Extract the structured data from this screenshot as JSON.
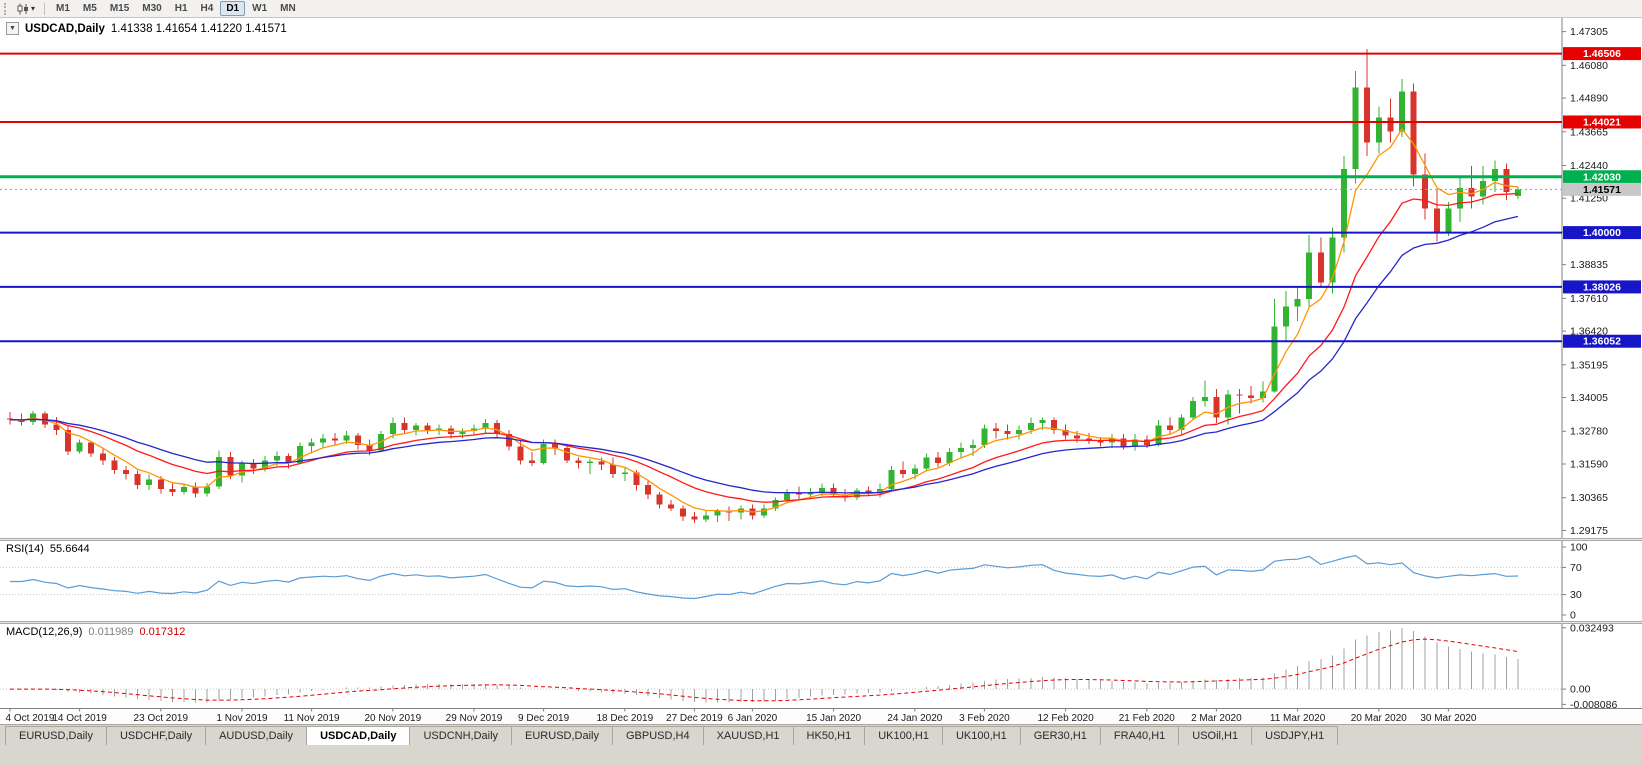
{
  "toolbar": {
    "timeframes": [
      "M1",
      "M5",
      "M15",
      "M30",
      "H1",
      "H4",
      "D1",
      "W1",
      "MN"
    ],
    "active_timeframe": "D1"
  },
  "chart": {
    "collapse_arrow": "▼",
    "title_symbol": "USDCAD,Daily",
    "title_ohlc": "1.41338 1.41654 1.41220 1.41571"
  },
  "rsi": {
    "label": "RSI(14)",
    "value": "55.6644"
  },
  "macd": {
    "label": "MACD(12,26,9)",
    "value_main": "0.011989",
    "value_signal": "0.017312"
  },
  "tabs": {
    "items": [
      "EURUSD,Daily",
      "USDCHF,Daily",
      "AUDUSD,Daily",
      "USDCAD,Daily",
      "USDCNH,Daily",
      "EURUSD,Daily",
      "GBPUSD,H4",
      "XAUUSD,H1",
      "HK50,H1",
      "UK100,H1",
      "UK100,H1",
      "GER30,H1",
      "FRA40,H1",
      "USOil,H1",
      "USDJPY,H1"
    ],
    "active_index": 3
  },
  "chart_data": {
    "type": "candlestick",
    "symbol": "USDCAD",
    "timeframe": "Daily",
    "indicators": [
      "RSI(14)",
      "MACD(12,26,9)"
    ],
    "colors": {
      "bull": "#32b332",
      "bear": "#d7342c",
      "background": "#ffffff",
      "axis_text": "#1a1a1a"
    },
    "price_scale": {
      "max": 1.478,
      "min": 1.289
    },
    "y_axis_ticks": [
      "1.47305",
      "1.46080",
      "1.44890",
      "1.43665",
      "1.42440",
      "1.41250",
      "1.40025",
      "1.38835",
      "1.37610",
      "1.36420",
      "1.35195",
      "1.34005",
      "1.32780",
      "1.31590",
      "1.30365",
      "1.29175"
    ],
    "x_axis_labels": [
      {
        "i": 0,
        "t": "4 Oct 2019"
      },
      {
        "i": 6,
        "t": "14 Oct 2019"
      },
      {
        "i": 13,
        "t": "23 Oct 2019"
      },
      {
        "i": 20,
        "t": "1 Nov 2019"
      },
      {
        "i": 26,
        "t": "11 Nov 2019"
      },
      {
        "i": 33,
        "t": "20 Nov 2019"
      },
      {
        "i": 40,
        "t": "29 Nov 2019"
      },
      {
        "i": 46,
        "t": "9 Dec 2019"
      },
      {
        "i": 53,
        "t": "18 Dec 2019"
      },
      {
        "i": 59,
        "t": "27 Dec 2019"
      },
      {
        "i": 64,
        "t": "6 Jan 2020"
      },
      {
        "i": 71,
        "t": "15 Jan 2020"
      },
      {
        "i": 78,
        "t": "24 Jan 2020"
      },
      {
        "i": 84,
        "t": "3 Feb 2020"
      },
      {
        "i": 91,
        "t": "12 Feb 2020"
      },
      {
        "i": 98,
        "t": "21 Feb 2020"
      },
      {
        "i": 104,
        "t": "2 Mar 2020"
      },
      {
        "i": 111,
        "t": "11 Mar 2020"
      },
      {
        "i": 118,
        "t": "20 Mar 2020"
      },
      {
        "i": 124,
        "t": "30 Mar 2020"
      }
    ],
    "levels": [
      {
        "price": 1.46506,
        "label": "1.46506",
        "color": "#e60000",
        "width": 2
      },
      {
        "price": 1.44021,
        "label": "1.44021",
        "color": "#e60000",
        "width": 2
      },
      {
        "price": 1.4203,
        "label": "1.42030",
        "color": "#00b050",
        "width": 3
      },
      {
        "price": 1.4,
        "label": "1.40000",
        "color": "#1616c8",
        "width": 2
      },
      {
        "price": 1.38026,
        "label": "1.38026",
        "color": "#1616c8",
        "width": 2
      },
      {
        "price": 1.36052,
        "label": "1.36052",
        "color": "#1616c8",
        "width": 2
      }
    ],
    "current_price": {
      "value": 1.41571,
      "label": "1.41571",
      "box_color": "#c8c8c8",
      "text_color": "#000000"
    },
    "moving_averages": [
      {
        "period": 5,
        "method": "ema",
        "color": "#ff9500"
      },
      {
        "period": 13,
        "method": "ema",
        "color": "#ff1a1a"
      },
      {
        "period": 21,
        "method": "ema",
        "color": "#2626cc"
      }
    ],
    "rsi": {
      "period": 14,
      "last_value": 55.6644,
      "color": "#5a9bd4",
      "axis": [
        {
          "v": 100,
          "t": "100"
        },
        {
          "v": 70,
          "t": "70"
        },
        {
          "v": 30,
          "t": "30"
        },
        {
          "v": 0,
          "t": "0"
        }
      ],
      "dotted_levels": [
        70,
        30
      ]
    },
    "macd": {
      "fast": 12,
      "slow": 26,
      "signal_period": 9,
      "last_main": 0.011989,
      "last_signal": 0.017312,
      "hist_color": "#a0a0a0",
      "signal_color": "#e60000",
      "axis": [
        {
          "v": 0.032493,
          "t": "0.032493"
        },
        {
          "v": 0,
          "t": "0.00"
        },
        {
          "v": -0.008086,
          "t": "-0.008086"
        }
      ],
      "scale_max": 0.032493,
      "view_max": 0.0345,
      "view_min": -0.01
    },
    "ohlc": [
      [
        1.3325,
        1.3348,
        1.3302,
        1.332
      ],
      [
        1.332,
        1.3342,
        1.3298,
        1.3312
      ],
      [
        1.3312,
        1.3352,
        1.33,
        1.3342
      ],
      [
        1.3342,
        1.335,
        1.329,
        1.3302
      ],
      [
        1.3302,
        1.333,
        1.3265,
        1.3282
      ],
      [
        1.3282,
        1.33,
        1.3192,
        1.3205
      ],
      [
        1.3205,
        1.3248,
        1.3198,
        1.3238
      ],
      [
        1.3238,
        1.3242,
        1.3185,
        1.3198
      ],
      [
        1.3198,
        1.3215,
        1.3155,
        1.3172
      ],
      [
        1.3172,
        1.3185,
        1.3122,
        1.3138
      ],
      [
        1.3138,
        1.3152,
        1.3102,
        1.3122
      ],
      [
        1.3122,
        1.3135,
        1.3068,
        1.3082
      ],
      [
        1.3082,
        1.312,
        1.3065,
        1.3102
      ],
      [
        1.3102,
        1.3115,
        1.3052,
        1.3068
      ],
      [
        1.3068,
        1.3088,
        1.3042,
        1.3058
      ],
      [
        1.3058,
        1.3085,
        1.3048,
        1.3075
      ],
      [
        1.3075,
        1.3092,
        1.3038,
        1.3052
      ],
      [
        1.3052,
        1.309,
        1.304,
        1.3078
      ],
      [
        1.3078,
        1.3208,
        1.3068,
        1.3185
      ],
      [
        1.3185,
        1.3202,
        1.3105,
        1.3118
      ],
      [
        1.3118,
        1.3172,
        1.3092,
        1.3162
      ],
      [
        1.3162,
        1.3178,
        1.3122,
        1.3142
      ],
      [
        1.3142,
        1.3188,
        1.3132,
        1.3172
      ],
      [
        1.3172,
        1.3205,
        1.3152,
        1.3188
      ],
      [
        1.3188,
        1.3198,
        1.3142,
        1.3162
      ],
      [
        1.3162,
        1.3238,
        1.3158,
        1.3225
      ],
      [
        1.3225,
        1.3252,
        1.3198,
        1.3238
      ],
      [
        1.3238,
        1.3268,
        1.3218,
        1.3252
      ],
      [
        1.3252,
        1.3272,
        1.3228,
        1.3245
      ],
      [
        1.3245,
        1.3278,
        1.3232,
        1.3262
      ],
      [
        1.3262,
        1.3272,
        1.3212,
        1.3228
      ],
      [
        1.3228,
        1.3248,
        1.3192,
        1.3208
      ],
      [
        1.3208,
        1.3278,
        1.3202,
        1.3268
      ],
      [
        1.3268,
        1.3328,
        1.3252,
        1.3308
      ],
      [
        1.3308,
        1.3328,
        1.3268,
        1.3282
      ],
      [
        1.3282,
        1.3308,
        1.3262,
        1.3298
      ],
      [
        1.3298,
        1.3308,
        1.3268,
        1.3282
      ],
      [
        1.3282,
        1.3302,
        1.3265,
        1.3288
      ],
      [
        1.3288,
        1.3298,
        1.3252,
        1.3268
      ],
      [
        1.3268,
        1.3288,
        1.3252,
        1.3278
      ],
      [
        1.3278,
        1.3302,
        1.3265,
        1.3288
      ],
      [
        1.3288,
        1.3322,
        1.3268,
        1.3308
      ],
      [
        1.3308,
        1.3318,
        1.3252,
        1.3268
      ],
      [
        1.3268,
        1.3282,
        1.3208,
        1.3222
      ],
      [
        1.3222,
        1.3242,
        1.3158,
        1.3172
      ],
      [
        1.3172,
        1.3202,
        1.3152,
        1.3162
      ],
      [
        1.3162,
        1.3248,
        1.3158,
        1.3232
      ],
      [
        1.3232,
        1.3248,
        1.3192,
        1.3218
      ],
      [
        1.3218,
        1.3228,
        1.3162,
        1.3172
      ],
      [
        1.3172,
        1.3182,
        1.3142,
        1.3162
      ],
      [
        1.3162,
        1.3178,
        1.3122,
        1.3168
      ],
      [
        1.3168,
        1.3182,
        1.3138,
        1.3158
      ],
      [
        1.3158,
        1.3182,
        1.3108,
        1.3122
      ],
      [
        1.3122,
        1.3148,
        1.3098,
        1.3128
      ],
      [
        1.3128,
        1.3138,
        1.3062,
        1.3082
      ],
      [
        1.3082,
        1.3098,
        1.3032,
        1.3048
      ],
      [
        1.3048,
        1.3058,
        1.2998,
        1.3012
      ],
      [
        1.3012,
        1.3028,
        1.2988,
        1.2998
      ],
      [
        1.2998,
        1.3008,
        1.2952,
        1.2968
      ],
      [
        1.2968,
        1.2985,
        1.2945,
        1.2958
      ],
      [
        1.2958,
        1.2988,
        1.2948,
        1.2972
      ],
      [
        1.2972,
        1.2995,
        1.2948,
        1.2988
      ],
      [
        1.2988,
        1.3005,
        1.2952,
        1.2982
      ],
      [
        1.2982,
        1.3008,
        1.2958,
        1.2998
      ],
      [
        1.2998,
        1.3012,
        1.2958,
        1.2972
      ],
      [
        1.2972,
        1.3012,
        1.2962,
        1.2998
      ],
      [
        1.2998,
        1.3038,
        1.2988,
        1.3028
      ],
      [
        1.3028,
        1.3068,
        1.3018,
        1.3052
      ],
      [
        1.3052,
        1.3078,
        1.3028,
        1.3048
      ],
      [
        1.3048,
        1.3072,
        1.3032,
        1.3058
      ],
      [
        1.3058,
        1.3088,
        1.3042,
        1.3072
      ],
      [
        1.3072,
        1.3088,
        1.3038,
        1.3048
      ],
      [
        1.3048,
        1.3068,
        1.3022,
        1.3038
      ],
      [
        1.3038,
        1.3072,
        1.3028,
        1.3062
      ],
      [
        1.3062,
        1.3078,
        1.3042,
        1.3052
      ],
      [
        1.3052,
        1.3088,
        1.3038,
        1.3068
      ],
      [
        1.3068,
        1.3152,
        1.3058,
        1.3138
      ],
      [
        1.3138,
        1.3168,
        1.3108,
        1.3122
      ],
      [
        1.3122,
        1.3158,
        1.3102,
        1.3142
      ],
      [
        1.3142,
        1.3198,
        1.3132,
        1.3182
      ],
      [
        1.3182,
        1.3202,
        1.3148,
        1.3162
      ],
      [
        1.3162,
        1.3218,
        1.3152,
        1.3202
      ],
      [
        1.3202,
        1.3238,
        1.3182,
        1.3218
      ],
      [
        1.3218,
        1.3248,
        1.3188,
        1.3228
      ],
      [
        1.3228,
        1.3302,
        1.3218,
        1.3288
      ],
      [
        1.3288,
        1.3308,
        1.3252,
        1.3278
      ],
      [
        1.3278,
        1.3302,
        1.3248,
        1.3268
      ],
      [
        1.3268,
        1.3298,
        1.3248,
        1.3282
      ],
      [
        1.3282,
        1.3328,
        1.3268,
        1.3308
      ],
      [
        1.3308,
        1.3328,
        1.3282,
        1.3318
      ],
      [
        1.3318,
        1.3328,
        1.3268,
        1.3282
      ],
      [
        1.3282,
        1.3302,
        1.3248,
        1.3262
      ],
      [
        1.3262,
        1.3278,
        1.3238,
        1.3252
      ],
      [
        1.3252,
        1.3272,
        1.3232,
        1.3242
      ],
      [
        1.3242,
        1.3258,
        1.3222,
        1.3238
      ],
      [
        1.3238,
        1.3268,
        1.3218,
        1.3252
      ],
      [
        1.3252,
        1.3268,
        1.3212,
        1.3222
      ],
      [
        1.3222,
        1.3268,
        1.3208,
        1.3248
      ],
      [
        1.3248,
        1.3262,
        1.3218,
        1.3228
      ],
      [
        1.3228,
        1.3318,
        1.3222,
        1.3298
      ],
      [
        1.3298,
        1.3328,
        1.3268,
        1.3282
      ],
      [
        1.3282,
        1.3338,
        1.3268,
        1.3328
      ],
      [
        1.3328,
        1.3402,
        1.3318,
        1.3388
      ],
      [
        1.3388,
        1.3462,
        1.3368,
        1.3402
      ],
      [
        1.3402,
        1.3432,
        1.3308,
        1.3328
      ],
      [
        1.3328,
        1.3428,
        1.3302,
        1.3412
      ],
      [
        1.3412,
        1.3432,
        1.3342,
        1.3408
      ],
      [
        1.3408,
        1.3442,
        1.3378,
        1.3398
      ],
      [
        1.3398,
        1.3458,
        1.3382,
        1.3422
      ],
      [
        1.3422,
        1.3758,
        1.3418,
        1.3658
      ],
      [
        1.3658,
        1.3788,
        1.3602,
        1.3732
      ],
      [
        1.3732,
        1.3802,
        1.3678,
        1.3758
      ],
      [
        1.3758,
        1.3992,
        1.3732,
        1.3928
      ],
      [
        1.3928,
        1.3982,
        1.3798,
        1.3818
      ],
      [
        1.3818,
        1.4018,
        1.3778,
        1.3982
      ],
      [
        1.3982,
        1.4278,
        1.3928,
        1.4232
      ],
      [
        1.4232,
        1.4588,
        1.4178,
        1.4528
      ],
      [
        1.4528,
        1.4668,
        1.4278,
        1.4328
      ],
      [
        1.4328,
        1.4458,
        1.4288,
        1.4418
      ],
      [
        1.4418,
        1.4488,
        1.4328,
        1.4368
      ],
      [
        1.4368,
        1.4558,
        1.4348,
        1.4512
      ],
      [
        1.4512,
        1.4542,
        1.4168,
        1.4212
      ],
      [
        1.4212,
        1.4288,
        1.4048,
        1.4088
      ],
      [
        1.4088,
        1.4158,
        1.3968,
        1.4002
      ],
      [
        1.4002,
        1.4112,
        1.3988,
        1.4088
      ],
      [
        1.4088,
        1.4198,
        1.4038,
        1.4162
      ],
      [
        1.4162,
        1.4242,
        1.4088,
        1.4132
      ],
      [
        1.4132,
        1.4242,
        1.4102,
        1.4188
      ],
      [
        1.4188,
        1.4262,
        1.4148,
        1.4232
      ],
      [
        1.4232,
        1.4252,
        1.4118,
        1.4148
      ],
      [
        1.41338,
        1.41654,
        1.4122,
        1.41571
      ]
    ]
  }
}
